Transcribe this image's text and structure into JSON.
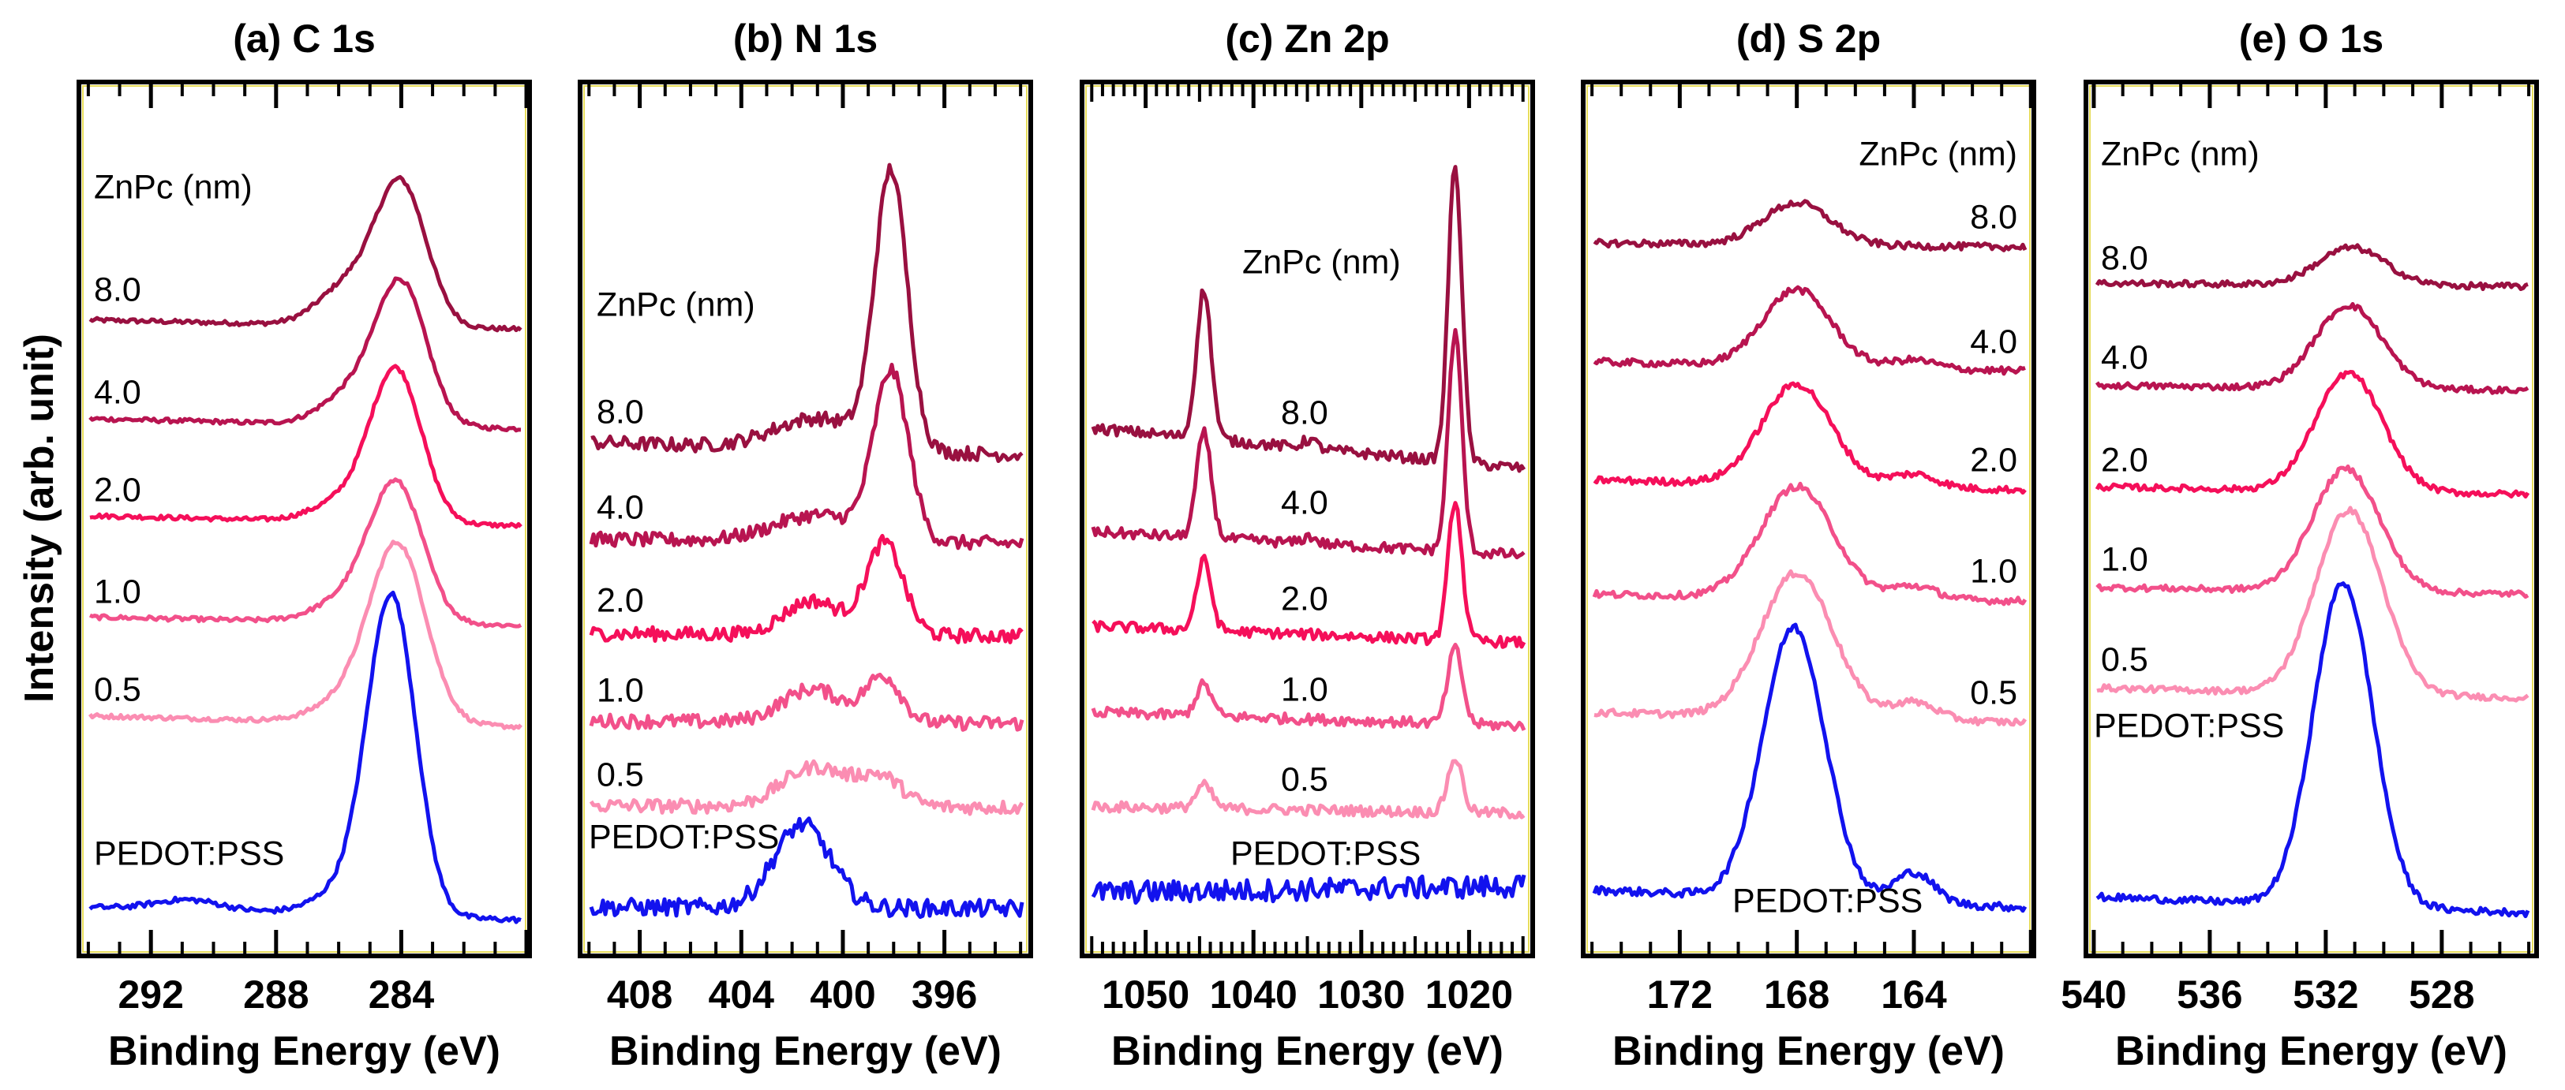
{
  "chart_data": [
    {
      "type": "line",
      "title": "(a) C 1s",
      "xlabel": "Binding Energy (eV)",
      "ylabel": "Intensity (arb. unit)",
      "xlim": [
        294.3,
        279.9
      ],
      "ylim": [
        0,
        100
      ],
      "xticks": [
        "292",
        "288",
        "284"
      ],
      "xtick_values": [
        292,
        288,
        284
      ],
      "minor_tick_step": 1,
      "major_tick_step": 4,
      "legend_title": "ZnPc (nm)",
      "grid": false,
      "series": [
        {
          "name": "8.0",
          "color": "#991040",
          "baseline": [
            72.8,
            71.7
          ],
          "peaks": [
            [
              284.0,
              16,
              1.9
            ],
            [
              285.7,
              4.5,
              2.2
            ]
          ]
        },
        {
          "name": "4.0",
          "color": "#b81450",
          "baseline": [
            61.5,
            60.3
          ],
          "peaks": [
            [
              284.0,
              16,
              1.9
            ],
            [
              285.6,
              3.5,
              2.2
            ]
          ]
        },
        {
          "name": "2.0",
          "color": "#f50f5a",
          "baseline": [
            50.4,
            49.2
          ],
          "peaks": [
            [
              284.15,
              17,
              1.9
            ],
            [
              285.7,
              2.5,
              2.4
            ]
          ]
        },
        {
          "name": "1.0",
          "color": "#f2508a",
          "baseline": [
            38.8,
            37.8
          ],
          "peaks": [
            [
              284.15,
              15.5,
              2.0
            ],
            [
              285.7,
              2.5,
              2.4
            ]
          ]
        },
        {
          "name": "0.5",
          "color": "#fb8db2",
          "baseline": [
            27.5,
            26.2
          ],
          "peaks": [
            [
              284.1,
              20,
              2.1
            ],
            [
              285.7,
              2.5,
              2.4
            ]
          ]
        },
        {
          "name": "PEDOT:PSS",
          "color": "#1212ee",
          "baseline": [
            5.6,
            4.1
          ],
          "peaks": [
            [
              284.3,
              35.5,
              1.8
            ],
            [
              285.6,
              3,
              2.5
            ],
            [
              290.8,
              1.2,
              2.5
            ]
          ]
        }
      ]
    },
    {
      "type": "line",
      "title": "(b) N 1s",
      "xlabel": "Binding Energy (eV)",
      "xlim": [
        410.35,
        392.6
      ],
      "ylim": [
        0,
        100
      ],
      "xticks": [
        "408",
        "404",
        "400",
        "396"
      ],
      "xtick_values": [
        408,
        404,
        400,
        396
      ],
      "minor_tick_step": 1,
      "major_tick_step": 4,
      "legend_title": "ZnPc (nm)",
      "grid": false,
      "series": [
        {
          "name": "8.0",
          "color": "#991040",
          "baseline": [
            58.8,
            57.3
          ],
          "peaks": [
            [
              398.1,
              31.5,
              1.5
            ],
            [
              401.0,
              3.5,
              4.0
            ]
          ]
        },
        {
          "name": "4.0",
          "color": "#b81450",
          "baseline": [
            47.7,
            47.2
          ],
          "peaks": [
            [
              398.1,
              19,
              1.6
            ],
            [
              401.0,
              3,
              4.0
            ]
          ]
        },
        {
          "name": "2.0",
          "color": "#f50f5a",
          "baseline": [
            36.9,
            36.6
          ],
          "peaks": [
            [
              398.35,
              10.5,
              1.7
            ],
            [
              401.2,
              3.9,
              2.6
            ]
          ]
        },
        {
          "name": "1.0",
          "color": "#f2508a",
          "baseline": [
            26.9,
            26.6
          ],
          "peaks": [
            [
              398.4,
              5.2,
              1.6
            ],
            [
              401.2,
              3.8,
              2.8
            ]
          ]
        },
        {
          "name": "0.5",
          "color": "#fb8db2",
          "baseline": [
            17.2,
            17.0
          ],
          "peaks": [
            [
              398.5,
              3.2,
              2.0
            ],
            [
              401.1,
              4.5,
              3.0
            ]
          ]
        },
        {
          "name": "PEDOT:PSS",
          "color": "#1212ee",
          "baseline": [
            5.6,
            5.4
          ],
          "peaks": [
            [
              401.6,
              9.5,
              2.6
            ]
          ]
        }
      ]
    },
    {
      "type": "line",
      "title": "(c) Zn 2p",
      "xlabel": "Binding Energy (eV)",
      "xlim": [
        1055.9,
        1014.1
      ],
      "ylim": [
        0,
        100
      ],
      "xticks": [
        "1050",
        "1040",
        "1030",
        "1020"
      ],
      "xtick_values": [
        1050,
        1040,
        1030,
        1020
      ],
      "minor_tick_step": 1,
      "major_tick_step": 10,
      "legend_title": "ZnPc (nm)",
      "grid": false,
      "series": [
        {
          "name": "8.0",
          "color": "#991040",
          "baseline": [
            60.5,
            55.7
          ],
          "peaks": [
            [
              1044.6,
              17,
              1.6
            ],
            [
              1021.3,
              34,
              1.5
            ],
            [
              1034.8,
              1,
              1.5
            ]
          ]
        },
        {
          "name": "4.0",
          "color": "#b81450",
          "baseline": [
            48.6,
            45.8
          ],
          "peaks": [
            [
              1044.6,
              12,
              1.6
            ],
            [
              1021.3,
              25,
              1.5
            ],
            [
              1034.8,
              0.8,
              1.5
            ]
          ]
        },
        {
          "name": "2.0",
          "color": "#f50f5a",
          "baseline": [
            37.8,
            35.8
          ],
          "peaks": [
            [
              1044.6,
              8,
              1.6
            ],
            [
              1021.3,
              16,
              1.5
            ]
          ]
        },
        {
          "name": "1.0",
          "color": "#f2508a",
          "baseline": [
            27.9,
            26.3
          ],
          "peaks": [
            [
              1044.6,
              3.6,
              1.7
            ],
            [
              1021.3,
              8.6,
              1.6
            ]
          ]
        },
        {
          "name": "0.5",
          "color": "#fb8db2",
          "baseline": [
            17.1,
            16.3
          ],
          "peaks": [
            [
              1044.6,
              2.6,
              1.8
            ],
            [
              1021.3,
              6.2,
              1.6
            ]
          ]
        },
        {
          "name": "PEDOT:PSS",
          "color": "#1212ee",
          "baseline": [
            7.2,
            8.0
          ],
          "peaks": []
        }
      ]
    },
    {
      "type": "line",
      "title": "(d) S 2p",
      "xlabel": "Binding Energy (eV)",
      "xlim": [
        175.3,
        159.9
      ],
      "ylim": [
        0,
        100
      ],
      "xticks": [
        "172",
        "168",
        "164"
      ],
      "xtick_values": [
        172,
        168,
        164
      ],
      "minor_tick_step": 1,
      "major_tick_step": 4,
      "legend_title": "ZnPc (nm)",
      "grid": false,
      "series": [
        {
          "name": "8.0",
          "color": "#991040",
          "baseline": [
            81.6,
            81.1
          ],
          "peaks": [
            [
              168.0,
              4.8,
              2.7
            ]
          ]
        },
        {
          "name": "4.0",
          "color": "#b81450",
          "baseline": [
            68.0,
            66.9
          ],
          "peaks": [
            [
              168.0,
              8.8,
              2.7
            ],
            [
              164.0,
              1,
              1.8
            ]
          ]
        },
        {
          "name": "2.0",
          "color": "#f50f5a",
          "baseline": [
            54.5,
            53.3
          ],
          "peaks": [
            [
              168.0,
              11.5,
              2.8
            ],
            [
              164.0,
              1.5,
              1.8
            ]
          ]
        },
        {
          "name": "1.0",
          "color": "#f2508a",
          "baseline": [
            41.4,
            40.6
          ],
          "peaks": [
            [
              168.0,
              12.7,
              2.9
            ],
            [
              164.0,
              1.5,
              1.8
            ]
          ]
        },
        {
          "name": "0.5",
          "color": "#fb8db2",
          "baseline": [
            27.9,
            26.7
          ],
          "peaks": [
            [
              168.0,
              16.5,
              2.9
            ],
            [
              164.0,
              2,
              1.8
            ]
          ]
        },
        {
          "name": "PEDOT:PSS",
          "color": "#1212ee",
          "baseline": [
            7.6,
            5.5
          ],
          "peaks": [
            [
              168.1,
              31,
              2.5
            ],
            [
              164.0,
              3.5,
              1.6
            ]
          ]
        }
      ]
    },
    {
      "type": "line",
      "title": "(e) O 1s",
      "xlabel": "Binding Energy (eV)",
      "xlim": [
        540.27,
        524.73
      ],
      "ylim": [
        0,
        100
      ],
      "xticks": [
        "540",
        "536",
        "532",
        "528"
      ],
      "xtick_values": [
        540,
        536,
        532,
        528
      ],
      "minor_tick_step": 1,
      "major_tick_step": 4,
      "legend_title": "ZnPc (nm)",
      "grid": false,
      "series": [
        {
          "name": "8.0",
          "color": "#991040",
          "baseline": [
            77.0,
            76.6
          ],
          "peaks": [
            [
              531.1,
              4.3,
              2.7
            ]
          ]
        },
        {
          "name": "4.0",
          "color": "#b81450",
          "baseline": [
            65.3,
            64.7
          ],
          "peaks": [
            [
              531.2,
              9.5,
              2.7
            ]
          ]
        },
        {
          "name": "2.0",
          "color": "#f50f5a",
          "baseline": [
            53.7,
            52.8
          ],
          "peaks": [
            [
              531.2,
              13.5,
              2.7
            ]
          ]
        },
        {
          "name": "1.0",
          "color": "#f2508a",
          "baseline": [
            42.2,
            41.4
          ],
          "peaks": [
            [
              531.3,
              14,
              2.7
            ]
          ]
        },
        {
          "name": "0.5",
          "color": "#fb8db2",
          "baseline": [
            30.7,
            29.5
          ],
          "peaks": [
            [
              531.2,
              21,
              2.7
            ]
          ]
        },
        {
          "name": "PEDOT:PSS",
          "color": "#1212ee",
          "baseline": [
            6.8,
            4.9
          ],
          "peaks": [
            [
              531.4,
              37,
              2.4
            ]
          ]
        }
      ]
    }
  ]
}
